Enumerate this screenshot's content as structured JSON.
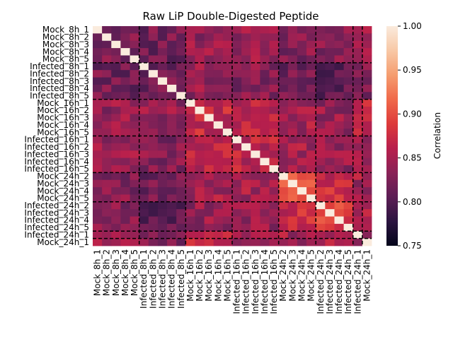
{
  "chart_data": {
    "type": "heatmap",
    "title": "Raw LiP Double-Digested Peptide",
    "labels": [
      "Mock_8h_1",
      "Mock_8h_2",
      "Mock_8h_3",
      "Mock_8h_4",
      "Mock_8h_5",
      "Infected_8h_1",
      "Infected_8h_2",
      "Infected_8h_3",
      "Infected_8h_4",
      "Infected_8h_5",
      "Mock_16h_1",
      "Mock_16h_2",
      "Mock_16h_3",
      "Mock_16h_4",
      "Mock_16h_5",
      "Infected_16h_1",
      "Infected_16h_2",
      "Infected_16h_3",
      "Infected_16h_4",
      "Infected_16h_5",
      "Mock_24h_2",
      "Mock_24h_3",
      "Mock_24h_4",
      "Mock_24h_5",
      "Infected_24h_2",
      "Infected_24h_3",
      "Infected_24h_4",
      "Infected_24h_5",
      "Infected_24h_1",
      "Mock_24h_1"
    ],
    "group_boundaries": [
      5,
      10,
      15,
      20,
      24,
      28,
      29
    ],
    "within_group": {
      "mock8": 0.83,
      "inf8": 0.82,
      "mock16": 0.87,
      "inf16": 0.86,
      "mock24": 0.91,
      "inf24": 0.89
    },
    "between_groups": [
      {
        "a": "mock8",
        "b": "inf8",
        "value": 0.82
      },
      {
        "a": "mock8",
        "b": "mock16",
        "value": 0.84
      },
      {
        "a": "mock8",
        "b": "inf16",
        "value": 0.84
      },
      {
        "a": "mock8",
        "b": "mock24",
        "value": 0.83
      },
      {
        "a": "mock8",
        "b": "inf24",
        "value": 0.83
      },
      {
        "a": "mock8",
        "b": "single",
        "value": 0.84
      },
      {
        "a": "inf8",
        "b": "mock16",
        "value": 0.84
      },
      {
        "a": "inf8",
        "b": "inf16",
        "value": 0.83
      },
      {
        "a": "inf8",
        "b": "mock24",
        "value": 0.82
      },
      {
        "a": "inf8",
        "b": "inf24",
        "value": 0.81
      },
      {
        "a": "inf8",
        "b": "single",
        "value": 0.83
      },
      {
        "a": "mock16",
        "b": "inf16",
        "value": 0.86
      },
      {
        "a": "mock16",
        "b": "mock24",
        "value": 0.85
      },
      {
        "a": "mock16",
        "b": "inf24",
        "value": 0.84
      },
      {
        "a": "mock16",
        "b": "single",
        "value": 0.86
      },
      {
        "a": "inf16",
        "b": "mock24",
        "value": 0.85
      },
      {
        "a": "inf16",
        "b": "inf24",
        "value": 0.84
      },
      {
        "a": "inf16",
        "b": "single",
        "value": 0.85
      },
      {
        "a": "mock24",
        "b": "inf24",
        "value": 0.87
      },
      {
        "a": "mock24",
        "b": "single",
        "value": 0.85
      },
      {
        "a": "inf24",
        "b": "single",
        "value": 0.85
      },
      {
        "a": "single",
        "b": "single",
        "value": 0.84
      }
    ],
    "diagonal": 1.0,
    "colorbar": {
      "label": "Correlation",
      "min": 0.75,
      "max": 1.0,
      "ticks": [
        "0.75",
        "0.80",
        "0.85",
        "0.90",
        "0.95",
        "1.00"
      ]
    },
    "colormap": "rocket",
    "colormap_stops": [
      "#03051a",
      "#2b1440",
      "#5c1e55",
      "#8a2257",
      "#b81f4c",
      "#dd3a3a",
      "#f0694a",
      "#f59d6f",
      "#f8c8a6",
      "#faebdd"
    ],
    "grid_lines": "dashed black at group boundaries"
  }
}
